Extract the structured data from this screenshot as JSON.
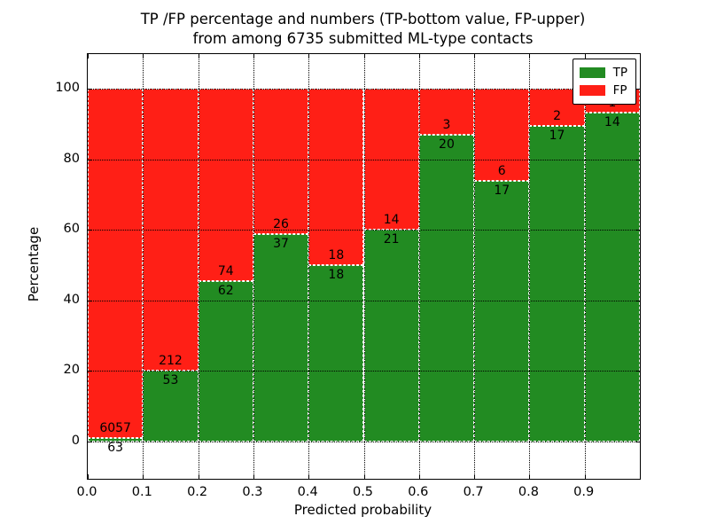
{
  "chart_data": {
    "type": "bar",
    "stacked": true,
    "title_line1": "TP /FP percentage and numbers (TP-bottom value, FP-upper)",
    "title_line2": "from among 6735 submitted ML-type contacts",
    "xlabel": "Predicted probability",
    "ylabel": "Percentage",
    "x_ticks": [
      "0.0",
      "0.1",
      "0.2",
      "0.3",
      "0.4",
      "0.5",
      "0.6",
      "0.7",
      "0.8",
      "0.9"
    ],
    "y_ticks": [
      0,
      20,
      40,
      60,
      80,
      100
    ],
    "xlim": [
      0.0,
      1.0
    ],
    "ylim": [
      -10.5,
      110
    ],
    "grid": "dotted, drawn above bars",
    "bar_width": 0.1,
    "total_contacts": 6735,
    "legend": [
      {
        "label": "TP",
        "color": "#228b22"
      },
      {
        "label": "FP",
        "color": "#ff1f16"
      }
    ],
    "legend_position": "upper right",
    "bars": [
      {
        "bin_start": 0.0,
        "bin_end": 0.1,
        "tp_count": 63,
        "fp_count": 6057,
        "tp_pct": 1.03
      },
      {
        "bin_start": 0.1,
        "bin_end": 0.2,
        "tp_count": 53,
        "fp_count": 212,
        "tp_pct": 20.0
      },
      {
        "bin_start": 0.2,
        "bin_end": 0.3,
        "tp_count": 62,
        "fp_count": 74,
        "tp_pct": 45.59
      },
      {
        "bin_start": 0.3,
        "bin_end": 0.4,
        "tp_count": 37,
        "fp_count": 26,
        "tp_pct": 58.73
      },
      {
        "bin_start": 0.4,
        "bin_end": 0.5,
        "tp_count": 18,
        "fp_count": 18,
        "tp_pct": 50.0
      },
      {
        "bin_start": 0.5,
        "bin_end": 0.6,
        "tp_count": 21,
        "fp_count": 14,
        "tp_pct": 60.0
      },
      {
        "bin_start": 0.6,
        "bin_end": 0.7,
        "tp_count": 20,
        "fp_count": 3,
        "tp_pct": 86.96
      },
      {
        "bin_start": 0.7,
        "bin_end": 0.8,
        "tp_count": 17,
        "fp_count": 6,
        "tp_pct": 73.91
      },
      {
        "bin_start": 0.8,
        "bin_end": 0.9,
        "tp_count": 17,
        "fp_count": 2,
        "tp_pct": 89.47
      },
      {
        "bin_start": 0.9,
        "bin_end": 1.0,
        "tp_count": 14,
        "fp_count": 1,
        "tp_pct": 93.33
      }
    ]
  }
}
